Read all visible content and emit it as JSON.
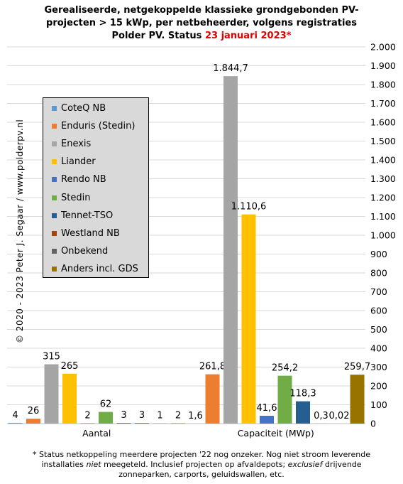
{
  "title": {
    "line1": "Gerealiseerde, netgekoppelde klassieke grondgebonden PV-",
    "line2": "projecten > 15 kWp, per netbeheerder, volgens registraties",
    "line3_prefix": "Polder PV. Status ",
    "line3_date": "23 januari 2023*"
  },
  "watermark": "© 2020 - 2023 Peter J. Segaar / www.polderpv.nl",
  "footnote": {
    "line1": "* Status netkoppeling meerdere projecten '22 nog onzeker. Nog niet stroom leverende",
    "line2_a": "installaties ",
    "line2_italic": "niet",
    "line2_b": " meegeteld. Inclusief projecten op afvaldepots; ",
    "line2_italic2": "exclusief",
    "line2_c": " drijvende",
    "line3": "zonneparken, carports, geluidswallen, etc."
  },
  "chart_data": {
    "type": "bar",
    "categories": [
      "Aantal",
      "Capaciteit (MWp)"
    ],
    "series": [
      {
        "name": "CoteQ NB",
        "color": "#5b9bd5",
        "values": [
          4,
          0
        ],
        "labels": [
          "4",
          ""
        ]
      },
      {
        "name": "Enduris (Stedin)",
        "color": "#ed7d31",
        "values": [
          26,
          261.8
        ],
        "labels": [
          "26",
          "261,8"
        ]
      },
      {
        "name": "Enexis",
        "color": "#a5a5a5",
        "values": [
          315,
          1844.7
        ],
        "labels": [
          "315",
          "1.844,7"
        ]
      },
      {
        "name": "Liander",
        "color": "#ffc000",
        "values": [
          265,
          1110.6
        ],
        "labels": [
          "265",
          "1.110,6"
        ]
      },
      {
        "name": "Rendo NB",
        "color": "#4472c4",
        "values": [
          2,
          41.6
        ],
        "labels": [
          "2",
          "41,6"
        ]
      },
      {
        "name": "Stedin",
        "color": "#70ad47",
        "values": [
          62,
          254.2
        ],
        "labels": [
          "62",
          "254,2"
        ]
      },
      {
        "name": "Tennet-TSO",
        "color": "#255e91",
        "values": [
          3,
          118.3
        ],
        "labels": [
          "3",
          "118,3"
        ]
      },
      {
        "name": "Westland NB",
        "color": "#9e480e",
        "values": [
          3,
          0.3
        ],
        "labels": [
          "3",
          "0,3"
        ]
      },
      {
        "name": "Onbekend",
        "color": "#636363",
        "values": [
          1,
          0.02
        ],
        "labels": [
          "1",
          "0,02"
        ]
      },
      {
        "name": "Anders incl. GDS",
        "color": "#997300",
        "values": [
          2,
          259.7
        ],
        "labels": [
          "2",
          "259,7"
        ]
      }
    ],
    "extra_label": {
      "category": "Aantal",
      "text": "1,6"
    },
    "ylim": [
      0,
      2000
    ],
    "yticks": [
      0,
      100,
      200,
      300,
      400,
      500,
      600,
      700,
      800,
      900,
      1000,
      1100,
      1200,
      1300,
      1400,
      1500,
      1600,
      1700,
      1800,
      1900,
      2000
    ],
    "ytick_labels": [
      "0",
      "100",
      "200",
      "300",
      "400",
      "500",
      "600",
      "700",
      "800",
      "900",
      "1.000",
      "1.100",
      "1.200",
      "1.300",
      "1.400",
      "1.500",
      "1.600",
      "1.700",
      "1.800",
      "1.900",
      "2.000"
    ],
    "grid": true,
    "yaxis_side": "right",
    "legend_position": "top-left"
  }
}
